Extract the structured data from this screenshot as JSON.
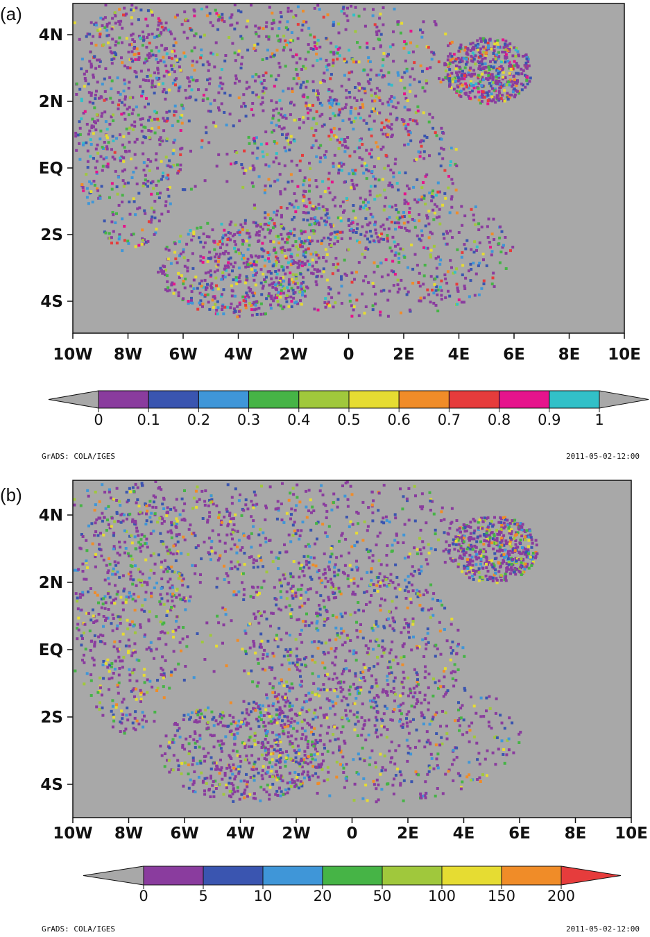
{
  "panels": [
    {
      "label": "(a)",
      "y_labels": [
        "4N",
        "2N",
        "EQ",
        "2S",
        "4S"
      ],
      "x_labels": [
        "10W",
        "8W",
        "6W",
        "4W",
        "2W",
        "0",
        "2E",
        "4E",
        "6E",
        "8E",
        "10E"
      ],
      "colorbar": {
        "labels": [
          "0",
          "0.1",
          "0.2",
          "0.3",
          "0.4",
          "0.5",
          "0.6",
          "0.7",
          "0.8",
          "0.9",
          "1"
        ],
        "colors": [
          "#8a3c9e",
          "#3a55b0",
          "#3f96d8",
          "#46b446",
          "#a0c83c",
          "#e6dc32",
          "#f08c28",
          "#e63c3c",
          "#e6148c",
          "#32c0c8"
        ],
        "under_color": "#a8a8a8",
        "over_color": "#a8a8a8"
      },
      "footer_left": "GrADS: COLA/IGES",
      "footer_right": "2011-05-02-12:00"
    },
    {
      "label": "(b)",
      "y_labels": [
        "4N",
        "2N",
        "EQ",
        "2S",
        "4S"
      ],
      "x_labels": [
        "10W",
        "8W",
        "6W",
        "4W",
        "2W",
        "0",
        "2E",
        "4E",
        "6E",
        "8E",
        "10E"
      ],
      "colorbar": {
        "labels": [
          "0",
          "5",
          "10",
          "20",
          "50",
          "100",
          "150",
          "200"
        ],
        "colors": [
          "#8a3c9e",
          "#3a55b0",
          "#3f96d8",
          "#46b446",
          "#a0c83c",
          "#e6dc32",
          "#f08c28"
        ],
        "under_color": "#a8a8a8",
        "over_color": "#e63c3c"
      },
      "footer_left": "GrADS: COLA/IGES",
      "footer_right": "2011-05-02-12:00"
    }
  ]
}
